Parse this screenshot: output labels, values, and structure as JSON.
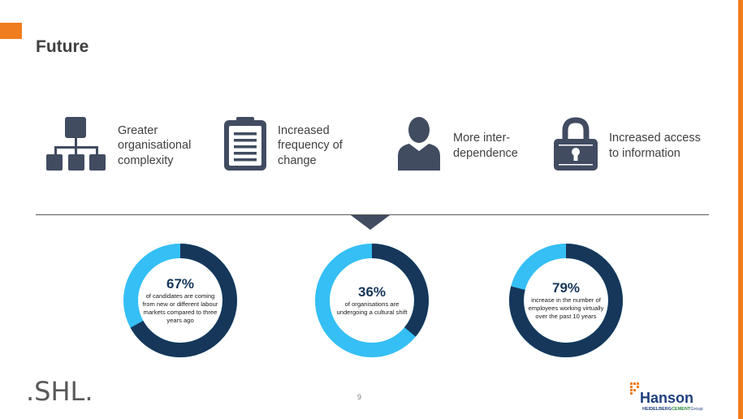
{
  "slide": {
    "title": "Future",
    "page_number": "9"
  },
  "features": [
    {
      "icon": "org-chart-icon",
      "label": "Greater organisational complexity"
    },
    {
      "icon": "clipboard-icon",
      "label": "Increased frequency of change"
    },
    {
      "icon": "person-icon",
      "label": "More inter-dependence"
    },
    {
      "icon": "lock-icon",
      "label": "Increased access to information"
    }
  ],
  "stats": [
    {
      "value": 67,
      "label": "67%",
      "description": "of candidates are coming from new or different labour markets compared to three years ago"
    },
    {
      "value": 36,
      "label": "36%",
      "description": "of organisations are undergoing a cultural shift"
    },
    {
      "value": 79,
      "label": "79%",
      "description": "increase in the number of employees working virtually over the past 10 years"
    }
  ],
  "colors": {
    "accent_orange": "#f07d1e",
    "donut_dark": "#16375a",
    "donut_light": "#35bff5",
    "icon_slate": "#414c61",
    "shl_teal": "#5bb8b4",
    "shl_grey": "#595959",
    "hanson_blue": "#1f3f7f",
    "hanson_orange": "#f07d1e"
  },
  "logos": {
    "shl_text": ".SHL.",
    "hanson_name": "Hanson",
    "hanson_group_a": "HEIDELBERG",
    "hanson_group_b": "CEMENT",
    "hanson_group_c": "Group"
  }
}
